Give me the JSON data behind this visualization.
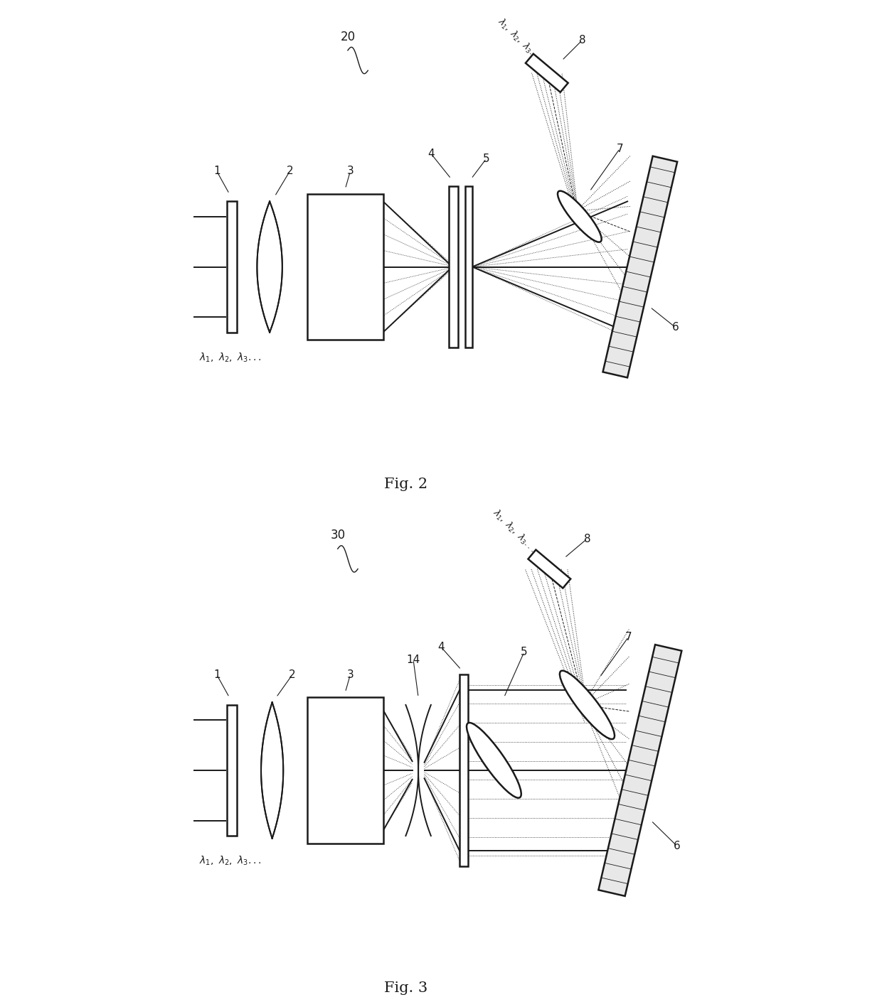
{
  "bg_color": "#ffffff",
  "line_color": "#1a1a1a",
  "fig2_label": "Fig. 2",
  "fig3_label": "Fig. 3",
  "label20": "20",
  "label30": "30"
}
